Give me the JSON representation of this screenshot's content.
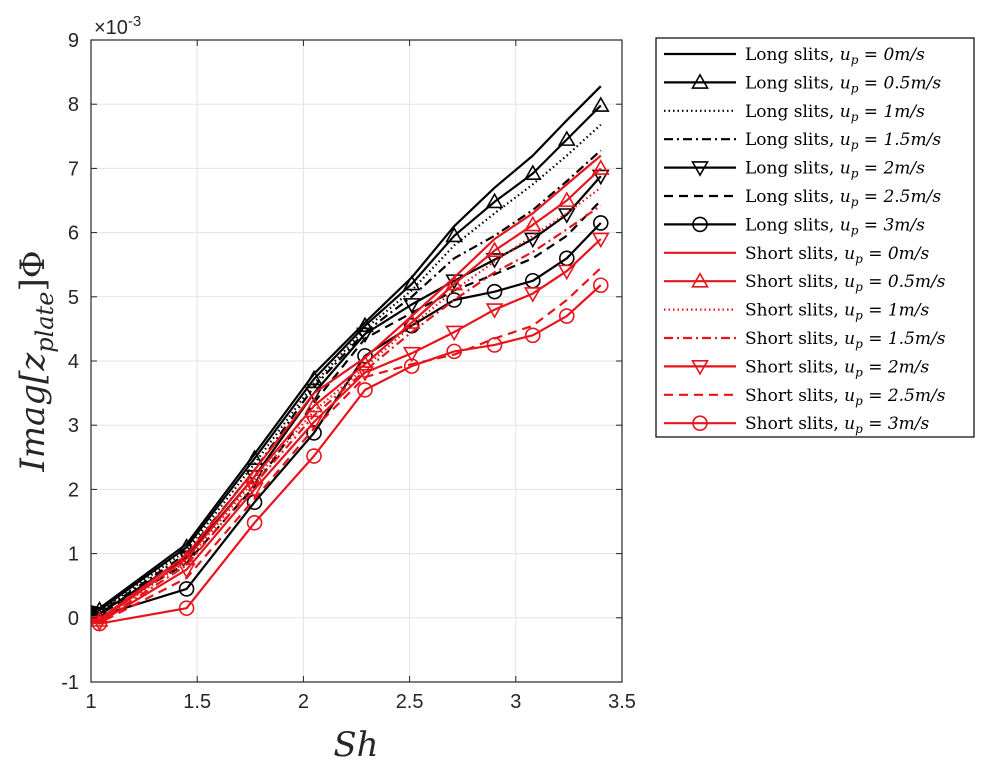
{
  "chart_data": {
    "type": "line",
    "xlabel": "Sh",
    "ylabel": "Imag[z_plate]Φ",
    "ylabel_parts": {
      "main": "Imag[z",
      "sub": "plate",
      "tail": "]Φ"
    },
    "y_multiplier": "×10^-3",
    "y_multiplier_parts": {
      "base": "×10",
      "exp": "-3"
    },
    "xlim": [
      1,
      3.5
    ],
    "ylim": [
      -1,
      9
    ],
    "x_ticks": [
      "1",
      "1.5",
      "2",
      "2.5",
      "3",
      "3.5"
    ],
    "y_ticks": [
      "-1",
      "0",
      "1",
      "2",
      "3",
      "4",
      "5",
      "6",
      "7",
      "8",
      "9"
    ],
    "grid": true,
    "legend_position": "outside-right",
    "x": [
      1,
      1.04,
      1.45,
      1.77,
      2.05,
      2.29,
      2.51,
      2.71,
      2.9,
      3.08,
      3.24,
      3.4
    ],
    "series": [
      {
        "name": "Long slits, u_p = 0m/s",
        "label_parts": {
          "prefix": "Long slits, ",
          "unit": "0m/s"
        },
        "color": "#000000",
        "dash": "solid",
        "marker": "none",
        "values": [
          0.18,
          0.15,
          1.15,
          2.55,
          3.8,
          4.6,
          5.3,
          6.1,
          6.7,
          7.2,
          7.75,
          8.28
        ]
      },
      {
        "name": "Long slits, u_p = 0.5m/s",
        "label_parts": {
          "prefix": "Long slits, ",
          "unit": "0.5m/s"
        },
        "color": "#000000",
        "dash": "solid",
        "marker": "triangle-up",
        "values": [
          0.15,
          0.12,
          1.1,
          2.48,
          3.72,
          4.55,
          5.2,
          5.95,
          6.48,
          6.92,
          7.45,
          7.98
        ]
      },
      {
        "name": "Long slits, u_p = 1m/s",
        "label_parts": {
          "prefix": "Long slits, ",
          "unit": "1m/s"
        },
        "color": "#000000",
        "dash": "dotted",
        "marker": "none",
        "values": [
          0.13,
          0.1,
          1.05,
          2.4,
          3.65,
          4.5,
          5.1,
          5.8,
          6.3,
          6.75,
          7.2,
          7.68
        ]
      },
      {
        "name": "Long slits, u_p = 1.5m/s",
        "label_parts": {
          "prefix": "Long slits, ",
          "unit": "1.5m/s"
        },
        "color": "#000000",
        "dash": "dashdot",
        "marker": "none",
        "values": [
          0.12,
          0.08,
          1.0,
          2.3,
          3.6,
          4.45,
          5.0,
          5.6,
          5.95,
          6.35,
          6.8,
          7.28
        ]
      },
      {
        "name": "Long slits, u_p = 2m/s",
        "label_parts": {
          "prefix": "Long slits, ",
          "unit": "2m/s"
        },
        "color": "#000000",
        "dash": "solid",
        "marker": "triangle-down",
        "values": [
          0.1,
          0.06,
          0.95,
          2.2,
          3.5,
          4.42,
          4.88,
          5.25,
          5.58,
          5.9,
          6.28,
          6.88
        ]
      },
      {
        "name": "Long slits, u_p = 2.5m/s",
        "label_parts": {
          "prefix": "Long slits, ",
          "unit": "2.5m/s"
        },
        "color": "#000000",
        "dash": "dashed",
        "marker": "none",
        "values": [
          0.08,
          0.05,
          0.85,
          2.05,
          3.35,
          4.35,
          4.75,
          5.1,
          5.35,
          5.6,
          5.95,
          6.5
        ]
      },
      {
        "name": "Long slits, u_p = 3m/s",
        "label_parts": {
          "prefix": "Long slits, ",
          "unit": "3m/s"
        },
        "color": "#000000",
        "dash": "solid",
        "marker": "circle",
        "values": [
          0.06,
          0.03,
          0.45,
          1.8,
          2.88,
          4.08,
          4.55,
          4.95,
          5.08,
          5.25,
          5.6,
          6.15
        ]
      },
      {
        "name": "Short slits, u_p = 0m/s",
        "label_parts": {
          "prefix": "Short slits, ",
          "unit": "0m/s"
        },
        "color": "#e8141c",
        "dash": "solid",
        "marker": "none",
        "values": [
          0.0,
          -0.02,
          0.98,
          2.3,
          3.5,
          4.05,
          4.7,
          5.3,
          5.9,
          6.3,
          6.75,
          7.2
        ]
      },
      {
        "name": "Short slits, u_p = 0.5m/s",
        "label_parts": {
          "prefix": "Short slits, ",
          "unit": "0.5m/s"
        },
        "color": "#e8141c",
        "dash": "solid",
        "marker": "triangle-up",
        "values": [
          -0.02,
          -0.04,
          0.92,
          2.2,
          3.3,
          3.95,
          4.6,
          5.2,
          5.72,
          6.12,
          6.5,
          7.0
        ]
      },
      {
        "name": "Short slits, u_p = 1m/s",
        "label_parts": {
          "prefix": "Short slits, ",
          "unit": "1m/s"
        },
        "color": "#e8141c",
        "dash": "dotted",
        "marker": "none",
        "values": [
          -0.03,
          -0.05,
          0.88,
          2.15,
          3.22,
          3.9,
          4.55,
          5.1,
          5.55,
          5.95,
          6.3,
          6.7
        ]
      },
      {
        "name": "Short slits, u_p = 1.5m/s",
        "label_parts": {
          "prefix": "Short slits, ",
          "unit": "1.5m/s"
        },
        "color": "#e8141c",
        "dash": "dashdot",
        "marker": "none",
        "values": [
          -0.04,
          -0.06,
          0.82,
          2.08,
          3.15,
          3.85,
          4.45,
          4.95,
          5.38,
          5.7,
          6.05,
          6.42
        ]
      },
      {
        "name": "Short slits, u_p = 2m/s",
        "label_parts": {
          "prefix": "Short slits, ",
          "unit": "2m/s"
        },
        "color": "#e8141c",
        "dash": "solid",
        "marker": "triangle-down",
        "values": [
          -0.05,
          -0.07,
          0.75,
          2.0,
          3.05,
          3.82,
          4.12,
          4.45,
          4.8,
          5.05,
          5.4,
          5.9
        ]
      },
      {
        "name": "Short slits, u_p = 2.5m/s",
        "label_parts": {
          "prefix": "Short slits, ",
          "unit": "2.5m/s"
        },
        "color": "#e8141c",
        "dash": "dashed",
        "marker": "none",
        "values": [
          -0.06,
          -0.08,
          0.62,
          1.85,
          2.95,
          3.75,
          3.95,
          4.1,
          4.35,
          4.55,
          4.95,
          5.45
        ]
      },
      {
        "name": "Short slits, u_p = 3m/s",
        "label_parts": {
          "prefix": "Short slits, ",
          "unit": "3m/s"
        },
        "color": "#e8141c",
        "dash": "solid",
        "marker": "circle",
        "values": [
          -0.07,
          -0.09,
          0.15,
          1.48,
          2.52,
          3.55,
          3.92,
          4.15,
          4.25,
          4.4,
          4.7,
          5.18
        ]
      }
    ]
  }
}
